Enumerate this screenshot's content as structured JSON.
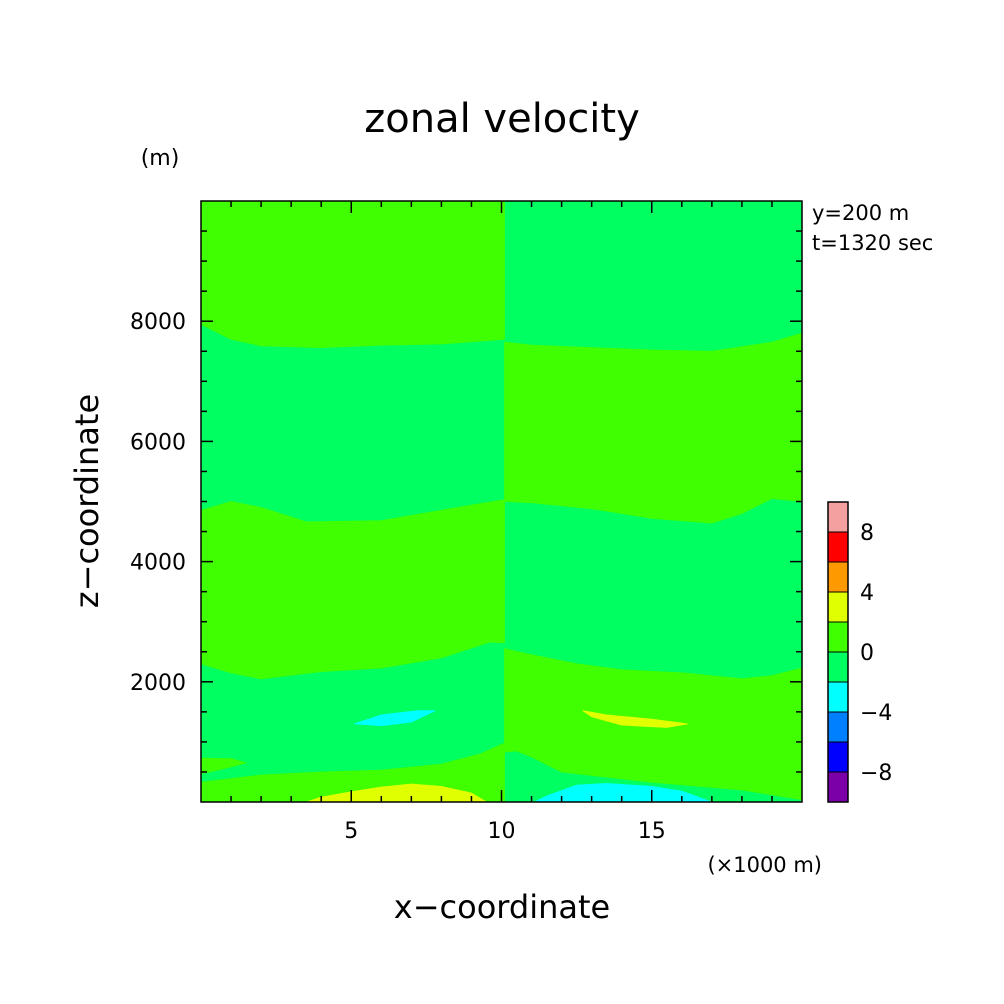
{
  "chart_data": {
    "type": "heatmap",
    "title": "zonal velocity",
    "xlabel": "x−coordinate",
    "ylabel": "z−coordinate",
    "x_unit": "(×1000 m)",
    "y_unit": "(m)",
    "info": [
      "y=200 m",
      "t=1320 sec"
    ],
    "xlim": [
      0,
      20
    ],
    "ylim": [
      0,
      10000
    ],
    "x_ticks": [
      5,
      10,
      15
    ],
    "x_tick_labels": [
      "5",
      "10",
      "15"
    ],
    "y_ticks": [
      2000,
      4000,
      6000,
      8000
    ],
    "y_tick_labels": [
      "2000",
      "4000",
      "6000",
      "8000"
    ],
    "colorbar": {
      "levels": [
        -10,
        -8,
        -6,
        -4,
        -2,
        0,
        2,
        4,
        6,
        8,
        10
      ],
      "colors": [
        "#7b00a8",
        "#0000ff",
        "#0080ff",
        "#00ffff",
        "#00ff60",
        "#40ff00",
        "#e0ff00",
        "#ff9900",
        "#ff0000",
        "#f5a0a0"
      ],
      "tick_values": [
        -8,
        -4,
        0,
        4,
        8
      ],
      "tick_labels": [
        "−8",
        "−4",
        "0",
        "4",
        "8"
      ]
    },
    "fields": {
      "positive_0_2": "#40ff00",
      "negative_0_2": "#00ff60",
      "positive_2_4": "#e0ff00",
      "negative_2_4": "#00ffff"
    }
  }
}
